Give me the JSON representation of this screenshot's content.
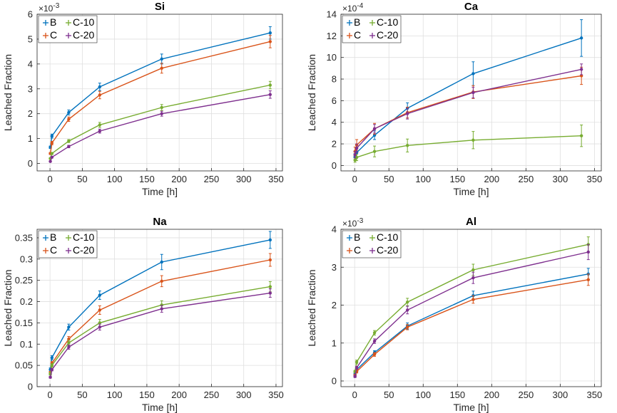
{
  "colors": {
    "B": "#0072BD",
    "C": "#D95319",
    "C-10": "#77AC30",
    "C-20": "#7E2F8E"
  },
  "chart_data": [
    {
      "type": "line",
      "title": "Si",
      "xlabel": "Time [h]",
      "ylabel": "Leached Fraction",
      "exponent": "×10",
      "exponent_power": "-3",
      "xlim": [
        -20,
        360
      ],
      "ylim": [
        -0.3,
        6
      ],
      "xticks": [
        0,
        50,
        100,
        150,
        200,
        250,
        300,
        350
      ],
      "yticks": [
        0,
        1,
        2,
        3,
        4,
        5,
        6
      ],
      "legend_position": "top-left",
      "series": [
        {
          "name": "B",
          "x": [
            0.5,
            3,
            29,
            77,
            173,
            341
          ],
          "y": [
            0.65,
            1.1,
            2.05,
            3.08,
            4.2,
            5.25
          ],
          "err": [
            0.05,
            0.08,
            0.1,
            0.15,
            0.2,
            0.25
          ]
        },
        {
          "name": "C",
          "x": [
            0.5,
            3,
            29,
            77,
            173,
            341
          ],
          "y": [
            0.4,
            0.82,
            1.78,
            2.75,
            3.83,
            4.9
          ],
          "err": [
            0.04,
            0.07,
            0.09,
            0.15,
            0.2,
            0.25
          ]
        },
        {
          "name": "C-10",
          "x": [
            0.5,
            3,
            29,
            77,
            173,
            341
          ],
          "y": [
            0.2,
            0.4,
            0.9,
            1.55,
            2.25,
            3.15
          ],
          "err": [
            0.03,
            0.04,
            0.06,
            0.1,
            0.12,
            0.15
          ]
        },
        {
          "name": "C-20",
          "x": [
            0.5,
            3,
            29,
            77,
            173,
            341
          ],
          "y": [
            0.08,
            0.25,
            0.68,
            1.3,
            2.0,
            2.77
          ],
          "err": [
            0.02,
            0.03,
            0.05,
            0.08,
            0.1,
            0.15
          ]
        }
      ]
    },
    {
      "type": "line",
      "title": "Ca",
      "xlabel": "Time [h]",
      "ylabel": "Leached Fraction",
      "exponent": "×10",
      "exponent_power": "-4",
      "xlim": [
        -20,
        360
      ],
      "ylim": [
        -0.5,
        14
      ],
      "xticks": [
        0,
        50,
        100,
        150,
        200,
        250,
        300,
        350
      ],
      "yticks": [
        0,
        2,
        4,
        6,
        8,
        10,
        12,
        14
      ],
      "legend_position": "top-left",
      "series": [
        {
          "name": "B",
          "x": [
            0.5,
            3,
            29,
            77,
            173,
            331
          ],
          "y": [
            0.8,
            1.2,
            2.8,
            5.3,
            8.5,
            11.8
          ],
          "err": [
            0.3,
            0.4,
            0.4,
            0.5,
            1.1,
            1.7
          ]
        },
        {
          "name": "C",
          "x": [
            0.5,
            3,
            29,
            77,
            173,
            331
          ],
          "y": [
            1.3,
            1.9,
            3.4,
            4.9,
            6.8,
            8.3
          ],
          "err": [
            0.4,
            0.5,
            0.5,
            0.5,
            0.6,
            0.8
          ]
        },
        {
          "name": "C-10",
          "x": [
            0.5,
            3,
            29,
            77,
            173,
            331
          ],
          "y": [
            0.5,
            0.75,
            1.3,
            1.85,
            2.35,
            2.75
          ],
          "err": [
            0.2,
            0.3,
            0.5,
            0.6,
            0.8,
            1.0
          ]
        },
        {
          "name": "C-20",
          "x": [
            0.5,
            3,
            29,
            77,
            173,
            331
          ],
          "y": [
            1.0,
            1.6,
            3.4,
            4.8,
            6.75,
            8.9
          ],
          "err": [
            0.3,
            0.4,
            0.4,
            0.5,
            0.5,
            0.5
          ]
        }
      ]
    },
    {
      "type": "line",
      "title": "Na",
      "xlabel": "Time [h]",
      "ylabel": "Leached Fraction",
      "exponent": "",
      "exponent_power": "",
      "xlim": [
        -20,
        360
      ],
      "ylim": [
        0,
        0.37
      ],
      "xticks": [
        0,
        50,
        100,
        150,
        200,
        250,
        300,
        350
      ],
      "yticks": [
        0,
        0.05,
        0.1,
        0.15,
        0.2,
        0.25,
        0.3,
        0.35
      ],
      "ytick_labels": [
        "0",
        "0.05",
        "0.1",
        "0.15",
        "0.2",
        "0.25",
        "0.3",
        "0.35"
      ],
      "legend_position": "top-left",
      "series": [
        {
          "name": "B",
          "x": [
            0.5,
            3,
            29,
            77,
            173,
            341
          ],
          "y": [
            0.04,
            0.068,
            0.14,
            0.215,
            0.293,
            0.345
          ],
          "err": [
            0.004,
            0.005,
            0.007,
            0.01,
            0.018,
            0.02
          ]
        },
        {
          "name": "C",
          "x": [
            0.5,
            3,
            29,
            77,
            173,
            341
          ],
          "y": [
            0.033,
            0.055,
            0.112,
            0.18,
            0.248,
            0.298
          ],
          "err": [
            0.003,
            0.004,
            0.006,
            0.01,
            0.013,
            0.015
          ]
        },
        {
          "name": "C-10",
          "x": [
            0.5,
            3,
            29,
            77,
            173,
            341
          ],
          "y": [
            0.03,
            0.05,
            0.103,
            0.15,
            0.192,
            0.235
          ],
          "err": [
            0.003,
            0.004,
            0.006,
            0.008,
            0.01,
            0.012
          ]
        },
        {
          "name": "C-20",
          "x": [
            0.5,
            3,
            29,
            77,
            173,
            341
          ],
          "y": [
            0.022,
            0.04,
            0.093,
            0.14,
            0.183,
            0.22
          ],
          "err": [
            0.002,
            0.003,
            0.005,
            0.007,
            0.008,
            0.01
          ]
        }
      ]
    },
    {
      "type": "line",
      "title": "Al",
      "xlabel": "Time [h]",
      "ylabel": "Leached Fraction",
      "exponent": "×10",
      "exponent_power": "-3",
      "xlim": [
        -20,
        360
      ],
      "ylim": [
        -0.15,
        4
      ],
      "xticks": [
        0,
        50,
        100,
        150,
        200,
        250,
        300,
        350
      ],
      "yticks": [
        0,
        1,
        2,
        3,
        4
      ],
      "legend_position": "top-left",
      "series": [
        {
          "name": "B",
          "x": [
            0.5,
            3,
            29,
            77,
            173,
            341
          ],
          "y": [
            0.18,
            0.3,
            0.75,
            1.45,
            2.25,
            2.82
          ],
          "err": [
            0.03,
            0.04,
            0.05,
            0.08,
            0.12,
            0.15
          ]
        },
        {
          "name": "C",
          "x": [
            0.5,
            3,
            29,
            77,
            173,
            341
          ],
          "y": [
            0.15,
            0.25,
            0.7,
            1.42,
            2.15,
            2.67
          ],
          "err": [
            0.03,
            0.04,
            0.05,
            0.07,
            0.1,
            0.15
          ]
        },
        {
          "name": "C-10",
          "x": [
            0.5,
            3,
            29,
            77,
            173,
            341
          ],
          "y": [
            0.25,
            0.5,
            1.27,
            2.08,
            2.93,
            3.6
          ],
          "err": [
            0.03,
            0.05,
            0.06,
            0.1,
            0.15,
            0.2
          ]
        },
        {
          "name": "C-20",
          "x": [
            0.5,
            3,
            29,
            77,
            173,
            341
          ],
          "y": [
            0.12,
            0.35,
            1.05,
            1.87,
            2.72,
            3.4
          ],
          "err": [
            0.03,
            0.04,
            0.06,
            0.1,
            0.15,
            0.2
          ]
        }
      ]
    }
  ]
}
